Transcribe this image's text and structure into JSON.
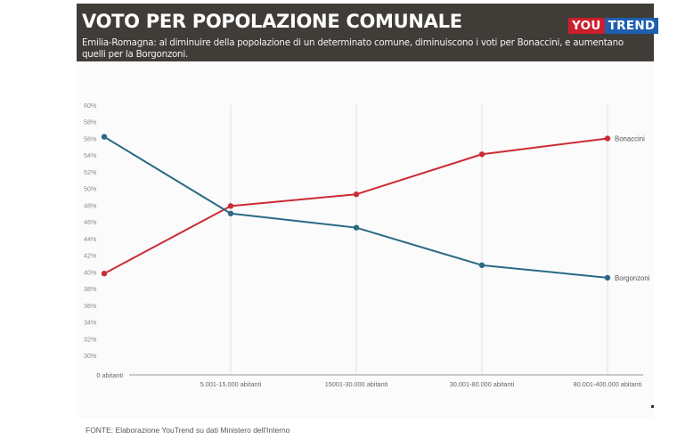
{
  "header": {
    "title": "VOTO PER POPOLAZIONE COMUNALE",
    "subtitle": "Emilia-Romagna: al diminuire della popolazione di un determinato comune, diminuiscono i voti per Bonaccini, e aumentano quelli per la Borgonzoni.",
    "logo_part1": "YOU",
    "logo_part2": "TREND"
  },
  "footer": {
    "source": "FONTE: Elaborazione YouTrend su dati Ministero dell'Interno"
  },
  "chart_data": {
    "type": "line",
    "title": "VOTO PER POPOLAZIONE COMUNALE",
    "xlabel": "",
    "ylabel": "",
    "categories": [
      "0 abitanti",
      "5.001-15.000 abitanti",
      "15001-30.000 abitanti",
      "30.001-80.000 abitanti",
      "80.001-400.000 abitanti"
    ],
    "yticks": [
      "60%",
      "58%",
      "56%",
      "54%",
      "52%",
      "50%",
      "48%",
      "46%",
      "44%",
      "42%",
      "40%",
      "38%",
      "36%",
      "34%",
      "32%",
      "30%"
    ],
    "ylim": [
      30,
      60
    ],
    "grid": "vertical",
    "legend": "inline-right",
    "series": [
      {
        "name": "Bonaccini",
        "color": "#cc2b35",
        "values": [
          39.8,
          47.9,
          49.3,
          54.1,
          56.0
        ]
      },
      {
        "name": "Borgonzoni",
        "color": "#2b6a84",
        "values": [
          56.2,
          47.0,
          45.3,
          40.8,
          39.3
        ]
      }
    ]
  }
}
